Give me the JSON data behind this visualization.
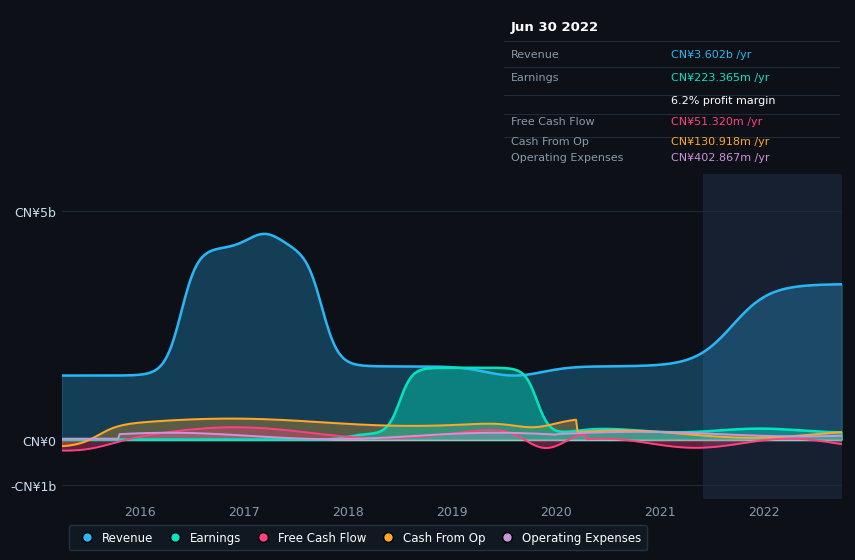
{
  "bg_color": "#0d1117",
  "highlight_bg": "#162030",
  "title": "Jun 30 2022",
  "y_labels": [
    "CN¥5b",
    "CN¥0",
    "-CN¥1b"
  ],
  "y_values": [
    5000000000.0,
    0,
    -1000000000.0
  ],
  "x_ticks": [
    2016,
    2017,
    2018,
    2019,
    2020,
    2021,
    2022
  ],
  "ylim": [
    -1300000000.0,
    5800000000.0
  ],
  "xlim_start": 2015.25,
  "xlim_end": 2022.75,
  "legend_items": [
    {
      "label": "Revenue",
      "color": "#29b6f6"
    },
    {
      "label": "Earnings",
      "color": "#00e5c0"
    },
    {
      "label": "Free Cash Flow",
      "color": "#ff4081"
    },
    {
      "label": "Cash From Op",
      "color": "#ffa726"
    },
    {
      "label": "Operating Expenses",
      "color": "#ce93d8"
    }
  ],
  "highlight_x_start": 2021.42,
  "highlight_x_end": 2022.75,
  "revenue_color": "#29b6f6",
  "earnings_color": "#00e5c0",
  "fcf_color": "#ff4081",
  "cashop_color": "#ffa726",
  "opex_color": "#ce93d8",
  "zero_line_color": "#ffffff",
  "grid_color": "#1a2a3a",
  "table_bg": "#0d1520",
  "table_border": "#1e2e3e",
  "label_color": "#8899aa",
  "revenue_value_color": "#29b6f6",
  "earnings_value_color": "#00e5c0",
  "fcf_value_color": "#ff4081",
  "cashop_value_color": "#ffa726",
  "opex_value_color": "#ce93d8"
}
